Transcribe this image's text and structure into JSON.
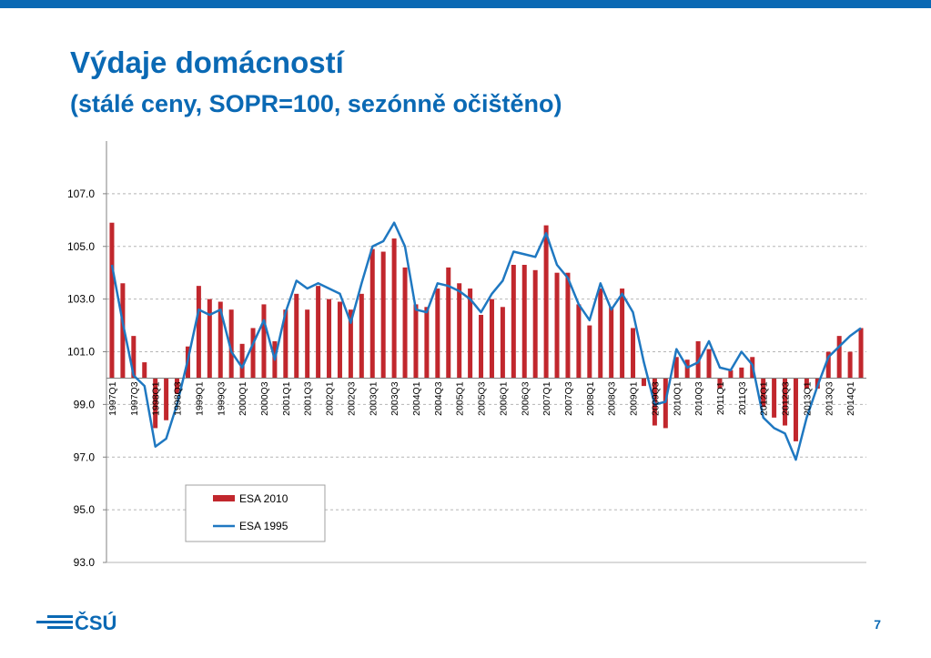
{
  "slide": {
    "title": "Výdaje domácností",
    "subtitle": "(stálé ceny, SOPR=100, sezónně očištěno)",
    "logo_text": "ČSÚ",
    "page_number": "7"
  },
  "colors": {
    "brand": "#0a69b4",
    "bar": "#c1272d",
    "line": "#1f78c1"
  },
  "chart_data": {
    "type": "bar",
    "title": "",
    "xlabel": "",
    "ylabel": "",
    "ylim": [
      93,
      109
    ],
    "yticks": [
      93,
      95,
      97,
      99,
      101,
      103,
      105,
      107
    ],
    "ytick_labels": [
      "93.0",
      "95.0",
      "97.0",
      "99.0",
      "101.0",
      "103.0",
      "105.0",
      "107.0"
    ],
    "baseline": 100,
    "grid": true,
    "legend_position": "bottom-center inside",
    "categories": [
      "1997Q1",
      "1997Q2",
      "1997Q3",
      "1997Q4",
      "1998Q1",
      "1998Q2",
      "1998Q3",
      "1998Q4",
      "1999Q1",
      "1999Q2",
      "1999Q3",
      "1999Q4",
      "2000Q1",
      "2000Q2",
      "2000Q3",
      "2000Q4",
      "2001Q1",
      "2001Q2",
      "2001Q3",
      "2001Q4",
      "2002Q1",
      "2002Q2",
      "2002Q3",
      "2002Q4",
      "2003Q1",
      "2003Q2",
      "2003Q3",
      "2003Q4",
      "2004Q1",
      "2004Q2",
      "2004Q3",
      "2004Q4",
      "2005Q1",
      "2005Q2",
      "2005Q3",
      "2005Q4",
      "2006Q1",
      "2006Q2",
      "2006Q3",
      "2006Q4",
      "2007Q1",
      "2007Q2",
      "2007Q3",
      "2007Q4",
      "2008Q1",
      "2008Q2",
      "2008Q3",
      "2008Q4",
      "2009Q1",
      "2009Q2",
      "2009Q3",
      "2009Q4",
      "2010Q1",
      "2010Q2",
      "2010Q3",
      "2010Q4",
      "2011Q1",
      "2011Q2",
      "2011Q3",
      "2011Q4",
      "2012Q1",
      "2012Q2",
      "2012Q3",
      "2012Q4",
      "2013Q1",
      "2013Q2",
      "2013Q3",
      "2013Q4",
      "2014Q1",
      "2014Q2"
    ],
    "x_tick_labels": [
      "1997Q1",
      "1997Q3",
      "1998Q1",
      "1998Q3",
      "1999Q1",
      "1999Q3",
      "2000Q1",
      "2000Q3",
      "2001Q1",
      "2001Q3",
      "2002Q1",
      "2002Q3",
      "2003Q1",
      "2003Q3",
      "2004Q1",
      "2004Q3",
      "2005Q1",
      "2005Q3",
      "2006Q1",
      "2006Q3",
      "2007Q1",
      "2007Q3",
      "2008Q1",
      "2008Q3",
      "2009Q1",
      "2009Q3",
      "2010Q1",
      "2010Q3",
      "2011Q1",
      "2011Q3",
      "2012Q1",
      "2012Q3",
      "2013Q1",
      "2013Q3",
      "2014Q1"
    ],
    "series": [
      {
        "name": "ESA 2010",
        "kind": "bar",
        "values": [
          105.9,
          103.6,
          101.6,
          100.6,
          98.1,
          98.4,
          99.4,
          101.2,
          103.5,
          103.0,
          102.9,
          102.6,
          101.3,
          101.9,
          102.8,
          101.4,
          102.6,
          103.2,
          102.6,
          103.5,
          103.0,
          102.9,
          102.6,
          103.2,
          104.9,
          104.8,
          105.3,
          104.2,
          102.8,
          102.7,
          103.4,
          104.2,
          103.6,
          103.4,
          102.4,
          103.0,
          102.7,
          104.3,
          104.3,
          104.1,
          105.8,
          104.0,
          104.0,
          102.8,
          102.0,
          103.4,
          102.7,
          103.4,
          101.9,
          99.7,
          98.2,
          98.1,
          100.8,
          100.7,
          101.4,
          101.1,
          99.6,
          100.3,
          100.4,
          100.8,
          98.9,
          98.5,
          98.2,
          97.6,
          99.6,
          99.6,
          101.0,
          101.6,
          101.0,
          101.9
        ]
      },
      {
        "name": "ESA 1995",
        "kind": "line",
        "values": [
          104.3,
          102.1,
          100.1,
          99.7,
          97.4,
          97.7,
          99.0,
          100.7,
          102.6,
          102.4,
          102.6,
          101.0,
          100.4,
          101.3,
          102.2,
          100.7,
          102.5,
          103.7,
          103.4,
          103.6,
          103.4,
          103.2,
          102.1,
          103.6,
          105.0,
          105.2,
          105.9,
          105.0,
          102.6,
          102.5,
          103.6,
          103.5,
          103.3,
          103.0,
          102.5,
          103.2,
          103.7,
          104.8,
          104.7,
          104.6,
          105.5,
          104.3,
          103.8,
          102.8,
          102.2,
          103.6,
          102.6,
          103.2,
          102.5,
          100.6,
          99.0,
          99.1,
          101.1,
          100.4,
          100.6,
          101.4,
          100.4,
          100.3,
          101.0,
          100.5,
          98.5,
          98.1,
          97.9,
          96.9,
          98.5,
          99.7,
          100.8,
          101.2,
          101.6,
          101.9
        ]
      }
    ]
  }
}
